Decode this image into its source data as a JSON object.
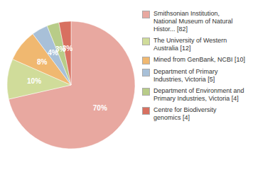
{
  "chart_data": {
    "type": "pie",
    "categories": [
      "Smithsonian Institution,\nNational Museum of Natural\nHistor... [82]",
      "The University of Western\nAustralia [12]",
      "Mined from GenBank, NCBI [10]",
      "Department of Primary\nIndustries, Victoria [5]",
      "Department of Environment and\nPrimary Industries, Victoria [4]",
      "Centre for Biodiversity\ngenomics [4]"
    ],
    "values": [
      70,
      10,
      8,
      4,
      3,
      3
    ],
    "value_labels": [
      "70%",
      "10%",
      "8%",
      "4%",
      "3%",
      "3%"
    ],
    "data_labels": true,
    "colors": [
      "#e8a8a0",
      "#d0dc9a",
      "#f0b870",
      "#a8c0d8",
      "#b8cc88",
      "#d87060"
    ],
    "legend": "upper right"
  }
}
